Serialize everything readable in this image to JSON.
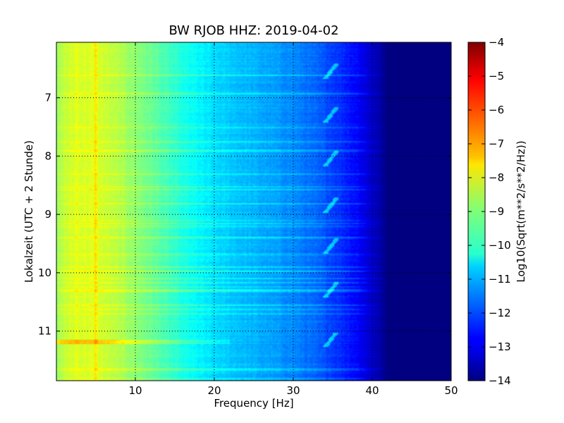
{
  "chart_data": {
    "type": "heatmap",
    "title": "BW RJOB HHZ: 2019-04-02",
    "xlabel": "Frequency [Hz]",
    "ylabel": "Lokalzeit (UTC + 2 Stunde)",
    "xlim": [
      0,
      50
    ],
    "ylim": [
      6.05,
      11.85
    ],
    "x_ticks": [
      10,
      20,
      30,
      40,
      50
    ],
    "y_ticks": [
      7,
      8,
      9,
      10,
      11
    ],
    "y_inverted": true,
    "grid": true,
    "colormap": "jet",
    "colorbar": {
      "label": "Log10(Sqrt(m**2/s**2/Hz))",
      "range": [
        -14,
        -4
      ],
      "ticks": [
        -4,
        -5,
        -6,
        -7,
        -8,
        -9,
        -10,
        -11,
        -12,
        -13,
        -14
      ]
    },
    "spectrum_profile": {
      "frequency_hz": [
        0,
        1,
        3,
        5,
        8,
        12,
        16,
        20,
        25,
        30,
        33,
        36,
        38,
        39,
        40,
        41,
        42,
        50
      ],
      "log10_amplitude": [
        -8.8,
        -8.3,
        -8.1,
        -8.1,
        -8.5,
        -9.2,
        -10.0,
        -10.6,
        -11.0,
        -11.4,
        -11.8,
        -12.3,
        -12.7,
        -13.0,
        -13.3,
        -13.6,
        -14.0,
        -14.0
      ]
    },
    "features": {
      "resonance_line_hz": 5,
      "harmonic_line_hz": 2.5,
      "strong_event_time": 11.18,
      "chirp_times": [
        6.55,
        7.3,
        8.05,
        8.85,
        9.55,
        10.3,
        11.15
      ],
      "chirp_frequency_range_hz": [
        34,
        35.5
      ]
    }
  }
}
